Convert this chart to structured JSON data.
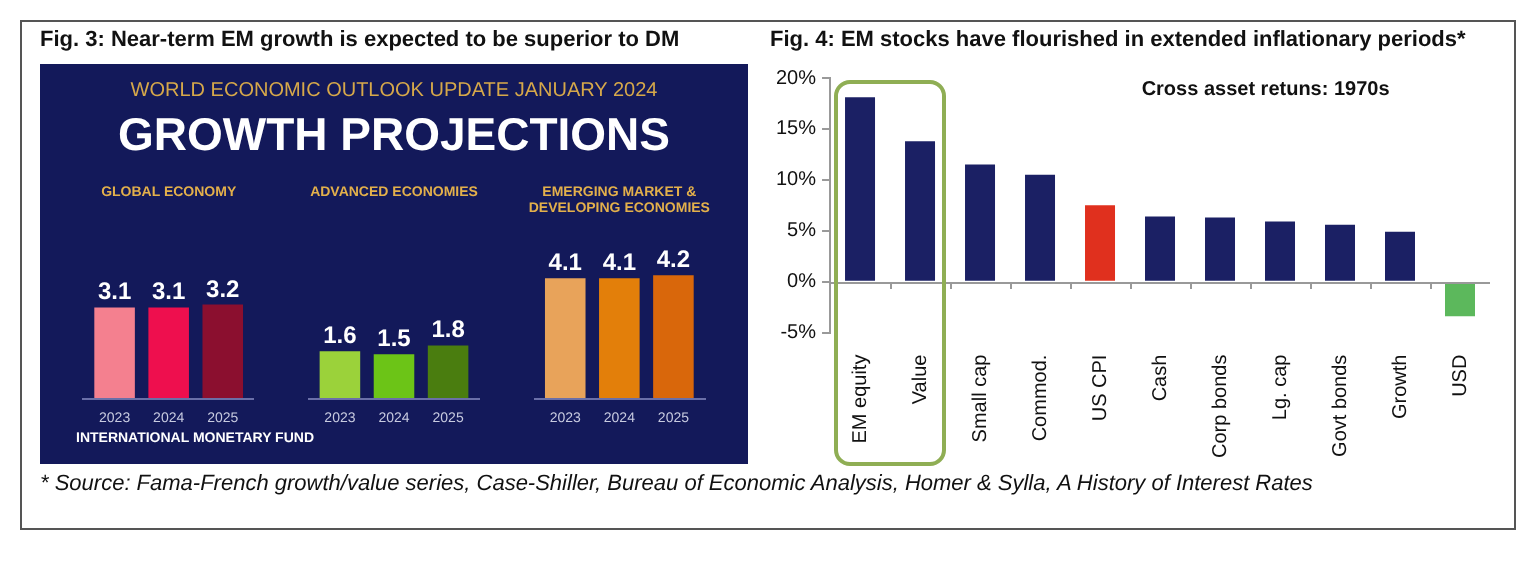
{
  "chart_data": [
    {
      "type": "bar",
      "title": "Fig. 3: Near-term EM growth is expected to be superior to DM",
      "subtitle": "WORLD ECONOMIC OUTLOOK UPDATE JANUARY 2024",
      "annotations": [
        "GROWTH PROJECTIONS",
        "INTERNATIONAL MONETARY FUND"
      ],
      "categories": [
        "GLOBAL ECONOMY",
        "ADVANCED ECONOMIES",
        "EMERGING MARKET & DEVELOPING ECONOMIES"
      ],
      "series": [
        {
          "name": "2023",
          "colors": [
            "#f4808f",
            "#9bd23a",
            "#e8a35a"
          ],
          "values": [
            3.1,
            1.6,
            4.1
          ]
        },
        {
          "name": "2024",
          "colors": [
            "#ee0f4e",
            "#6cc417",
            "#e37f0a"
          ],
          "values": [
            3.1,
            1.5,
            4.1
          ]
        },
        {
          "name": "2025",
          "colors": [
            "#8b0f2f",
            "#4a7d0f",
            "#d9670b"
          ],
          "values": [
            3.2,
            1.8,
            4.2
          ]
        }
      ],
      "data_labels": true
    },
    {
      "type": "bar",
      "title": "Fig. 4: EM stocks have flourished in extended inflationary periods*",
      "annotations": [
        "Cross asset retuns: 1970s",
        "* Source: Fama-French growth/value series, Case-Shiller, Bureau of Economic Analysis, Homer & Sylla, A History of Interest Rates"
      ],
      "categories": [
        "EM equity",
        "Value",
        "Small cap",
        "Commod.",
        "US CPI",
        "Cash",
        "Corp bonds",
        "Lg. cap",
        "Govt bonds",
        "Growth",
        "USD"
      ],
      "values": [
        18.1,
        13.8,
        11.5,
        10.5,
        7.5,
        6.4,
        6.3,
        5.9,
        5.6,
        4.9,
        -3.4
      ],
      "colors": [
        "#1b2064",
        "#1b2064",
        "#1b2064",
        "#1b2064",
        "#e0301e",
        "#1b2064",
        "#1b2064",
        "#1b2064",
        "#1b2064",
        "#1b2064",
        "#5cb85c"
      ],
      "ylim": [
        -5,
        20
      ],
      "yticks": [
        {
          "value": -5,
          "label": "-5%"
        },
        {
          "value": 0,
          "label": "0%"
        },
        {
          "value": 5,
          "label": "5%"
        },
        {
          "value": 10,
          "label": "10%"
        },
        {
          "value": 15,
          "label": "15%"
        },
        {
          "value": 20,
          "label": "20%"
        }
      ]
    }
  ]
}
